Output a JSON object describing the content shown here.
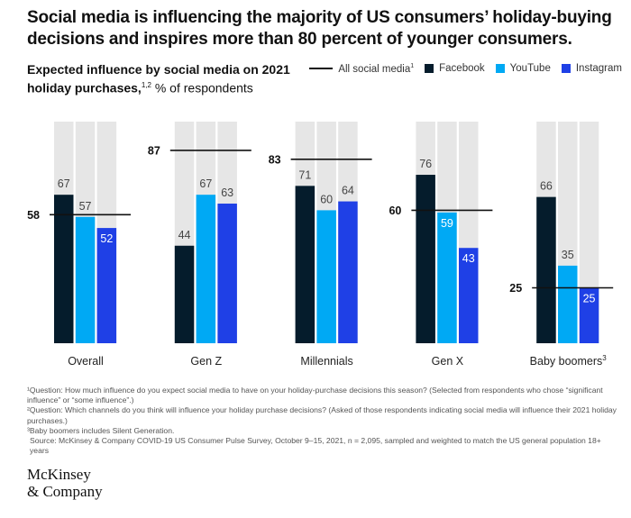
{
  "title": "Social media is influencing the majority of US consumers’ holiday-buying decisions and inspires more than 80 percent of younger consumers.",
  "subtitle_bold": "Expected influence by social media on 2021 holiday purchases,",
  "subtitle_sup": "1,2",
  "subtitle_rest": " % of respondents",
  "legend": {
    "all": "All social media",
    "all_sup": "1",
    "facebook": "Facebook",
    "youtube": "YouTube",
    "instagram": "Instagram"
  },
  "colors": {
    "facebook": "#051c2c",
    "youtube": "#00a9f4",
    "instagram": "#1f40e6",
    "background_bar": "#e6e6e6",
    "line": "#111111"
  },
  "chart_data": {
    "type": "bar",
    "ylim": [
      0,
      100
    ],
    "categories": [
      "Overall",
      "Gen Z",
      "Millennials",
      "Gen X",
      "Baby boomers"
    ],
    "category_sups": [
      "",
      "",
      "",
      "",
      "3"
    ],
    "series": [
      {
        "name": "Facebook",
        "values": [
          67,
          44,
          71,
          76,
          66
        ]
      },
      {
        "name": "YouTube",
        "values": [
          57,
          67,
          60,
          59,
          35
        ]
      },
      {
        "name": "Instagram",
        "values": [
          52,
          63,
          64,
          43,
          25
        ]
      }
    ],
    "line_series": {
      "name": "All social media",
      "values": [
        58,
        87,
        83,
        60,
        25
      ]
    },
    "grid": false,
    "legend_placement": "top-right"
  },
  "notes": [
    "¹Question: How much influence do you expect social media to have on your holiday-purchase decisions this season? (Selected from respondents who chose “significant influence” or “some influence”.)",
    "²Question: Which channels do you think will influence your holiday purchase decisions? (Asked of those respondents indicating social media will influence their 2021 holiday purchases.)",
    "³Baby boomers includes Silent Generation.",
    "Source: McKinsey & Company COVID-19 US Consumer Pulse Survey, October 9–15, 2021, n = 2,095, sampled and weighted to match the US general population 18+ years"
  ],
  "logo": {
    "line1": "McKinsey",
    "line2": "& Company"
  }
}
